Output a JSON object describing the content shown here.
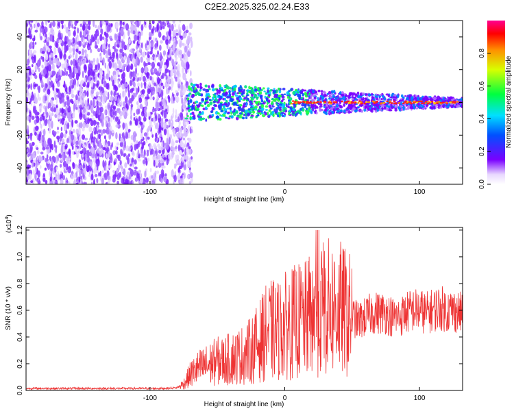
{
  "title": "C2E2.2025.325.02.24.E33",
  "chart_data": [
    {
      "type": "heatmap",
      "xlabel": "Height of straight line (km)",
      "ylabel": "Frequency (Hz)",
      "xlim": [
        -192,
        132
      ],
      "ylim": [
        -50,
        50
      ],
      "xticks": [
        -100,
        0,
        100
      ],
      "yticks": [
        -40,
        -20,
        0,
        20,
        40
      ],
      "colorbar": {
        "label": "Normalized spectral amplitude",
        "range": [
          0,
          1
        ],
        "ticks": [
          "0.0",
          "0.2",
          "0.4",
          "0.6",
          "0.8"
        ]
      },
      "regions": [
        {
          "name": "noise",
          "x": [
            -192,
            -73
          ],
          "freq_range": [
            -50,
            50
          ],
          "amplitude": "low"
        },
        {
          "name": "signal-band",
          "x": [
            -73,
            132
          ],
          "freq_center": 0,
          "amplitude": "high"
        }
      ]
    },
    {
      "type": "line",
      "xlabel": "Height of straight line (km)",
      "ylabel": "SNR (10 * v/v)",
      "scale_label": "(x10",
      "scale_exp": "4",
      "scale_close": ")",
      "xlim": [
        -192,
        132
      ],
      "ylim": [
        0,
        1.22
      ],
      "xticks": [
        -100,
        0,
        100
      ],
      "yticks": [
        "0.0",
        "0.2",
        "0.4",
        "0.6",
        "0.8",
        "1.0",
        "1.2"
      ],
      "series_color": "#ee3333",
      "x": [
        -190,
        -170,
        -150,
        -130,
        -110,
        -90,
        -80,
        -75,
        -70,
        -65,
        -60,
        -55,
        -50,
        -45,
        -40,
        -35,
        -30,
        -25,
        -20,
        -15,
        -10,
        -5,
        0,
        5,
        10,
        15,
        20,
        25,
        30,
        35,
        40,
        45,
        50,
        55,
        60,
        65,
        70,
        75,
        80,
        85,
        90,
        95,
        100,
        105,
        110,
        115,
        120,
        125,
        130
      ],
      "y": [
        0.015,
        0.015,
        0.015,
        0.015,
        0.015,
        0.015,
        0.02,
        0.05,
        0.12,
        0.16,
        0.18,
        0.2,
        0.22,
        0.22,
        0.24,
        0.25,
        0.27,
        0.3,
        0.35,
        0.42,
        0.45,
        0.45,
        0.48,
        0.5,
        0.52,
        0.52,
        0.58,
        0.6,
        0.62,
        0.62,
        0.62,
        0.58,
        0.55,
        0.52,
        0.55,
        0.58,
        0.58,
        0.58,
        0.55,
        0.55,
        0.58,
        0.6,
        0.6,
        0.58,
        0.6,
        0.62,
        0.6,
        0.6,
        0.58
      ]
    }
  ]
}
